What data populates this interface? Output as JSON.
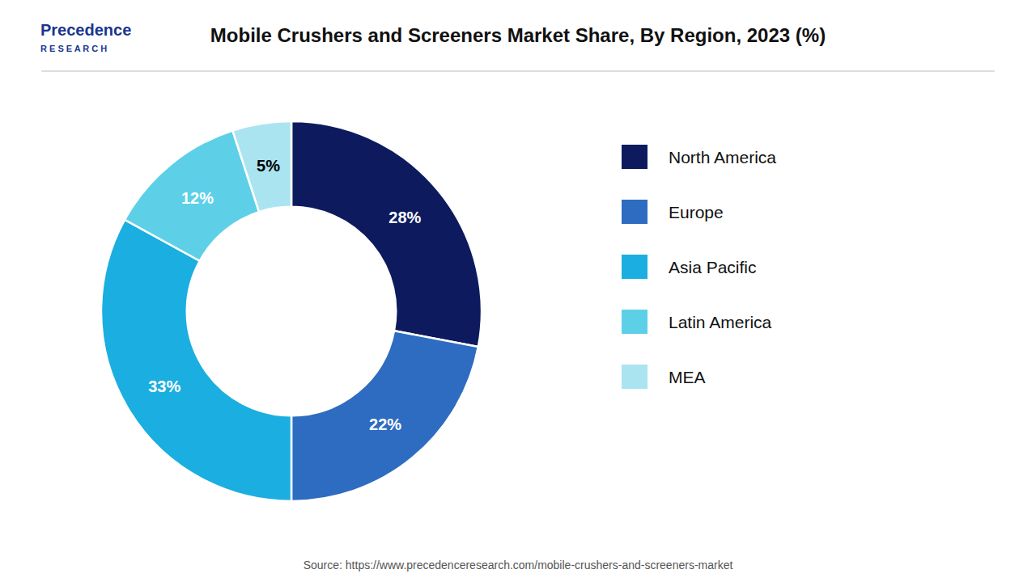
{
  "chart_data": {
    "type": "donut",
    "title": "Mobile Crushers and Screeners Market Share, By Region, 2023 (%)",
    "categories": [
      "North America",
      "Europe",
      "Asia Pacific",
      "Latin America",
      "MEA"
    ],
    "values": [
      28,
      22,
      33,
      12,
      5
    ],
    "value_labels": [
      "28%",
      "22%",
      "33%",
      "12%",
      "5%"
    ],
    "colors": [
      "#0d1b5e",
      "#2d6cc0",
      "#1baee0",
      "#5dd0e8",
      "#aae4f0"
    ],
    "data_labels": true,
    "legend": "right",
    "annotations": [
      "Precedence",
      "R E S E A R C H",
      "Source: https://www.precedenceresearch.com/mobile-crushers-and-screeners-market"
    ]
  }
}
